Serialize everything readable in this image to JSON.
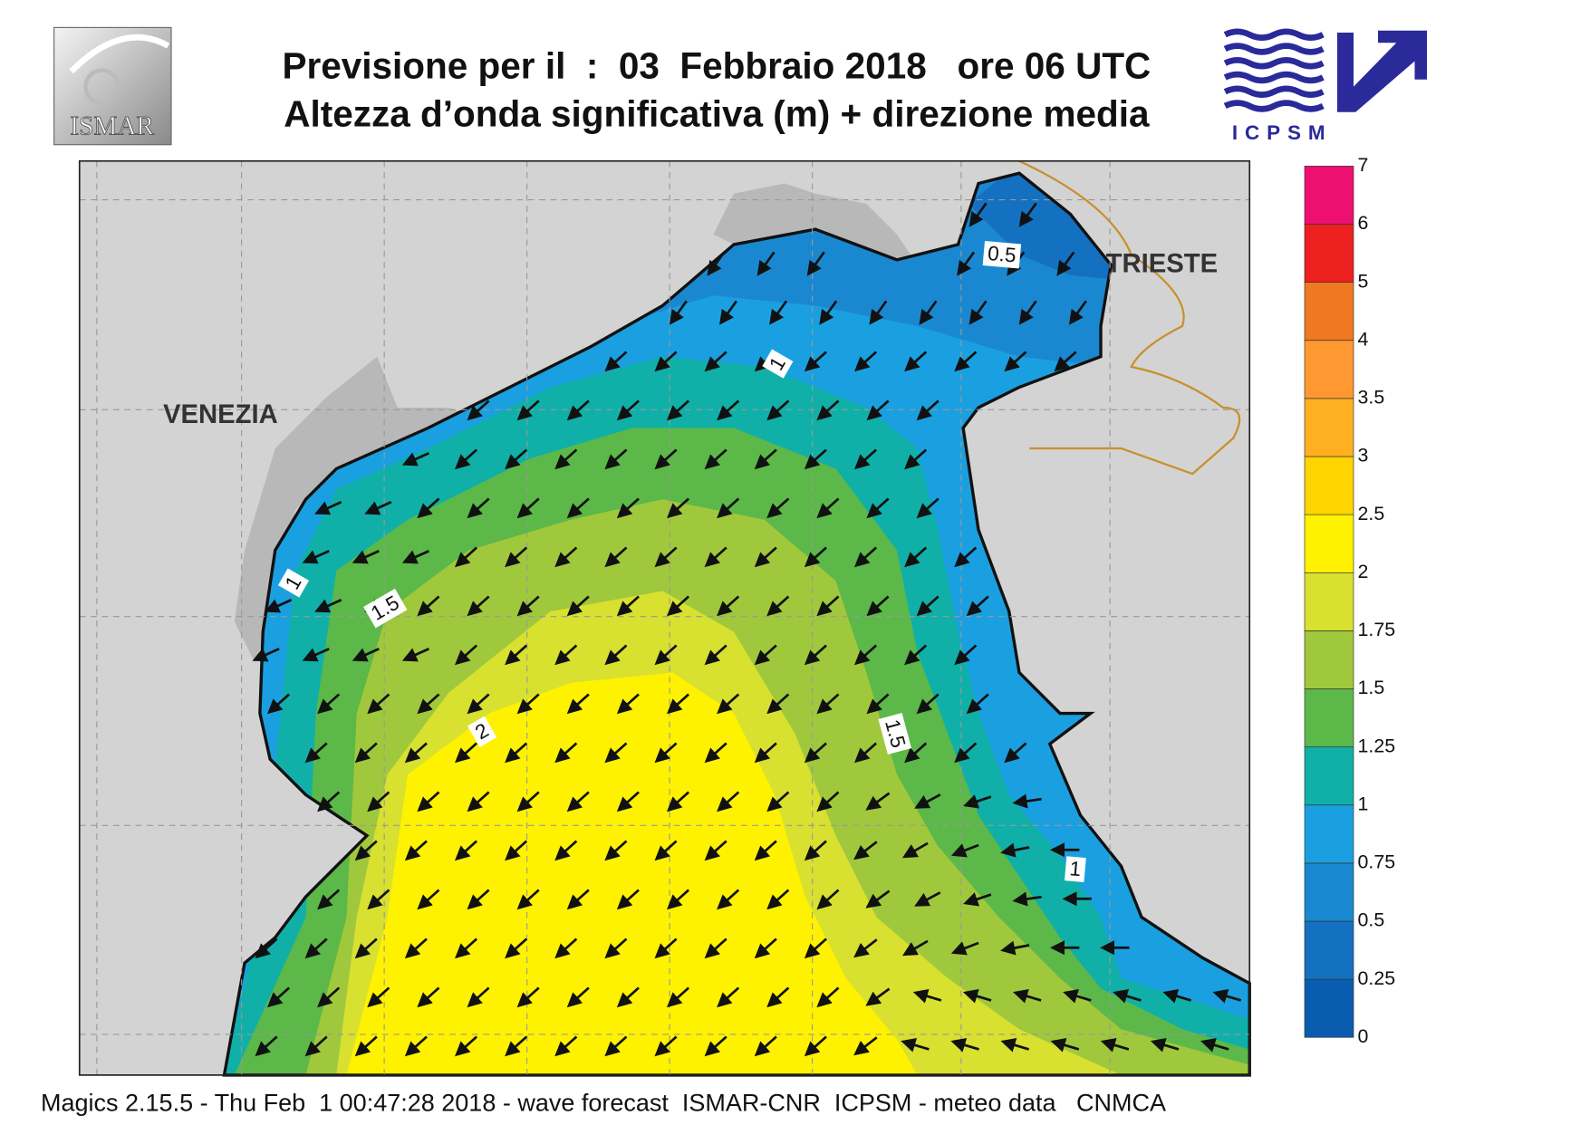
{
  "header": {
    "title_line1": "Previsione per il  :  03  Febbraio 2018   ore 06 UTC",
    "title_line2": "Altezza d’onda significativa (m) + direzione media",
    "logo_left": "ISMAR",
    "logo_right": "ICPSM"
  },
  "map": {
    "cities": [
      "VENEZIA",
      "TRIESTE"
    ],
    "contour_labels": [
      "0.5",
      "1",
      "1",
      "1.5",
      "2",
      "1.5",
      "1"
    ]
  },
  "colorbar": {
    "ticks": [
      0,
      0.25,
      0.5,
      0.75,
      1,
      1.25,
      1.5,
      1.75,
      2,
      2.5,
      3,
      3.5,
      4,
      5,
      6,
      7
    ],
    "colors": [
      "#0a5cb0",
      "#1470c0",
      "#1a88d0",
      "#1aa0e0",
      "#10b0a8",
      "#5cb848",
      "#a0c83c",
      "#d8e030",
      "#fff200",
      "#ffd400",
      "#ffb020",
      "#ff9830",
      "#f07820",
      "#ee2020",
      "#ee1070"
    ]
  },
  "footer": "Magics 2.15.5 - Thu Feb  1 00:47:28 2018 - wave forecast  ISMAR-CNR  ICPSM - meteo data   CNMCA"
}
